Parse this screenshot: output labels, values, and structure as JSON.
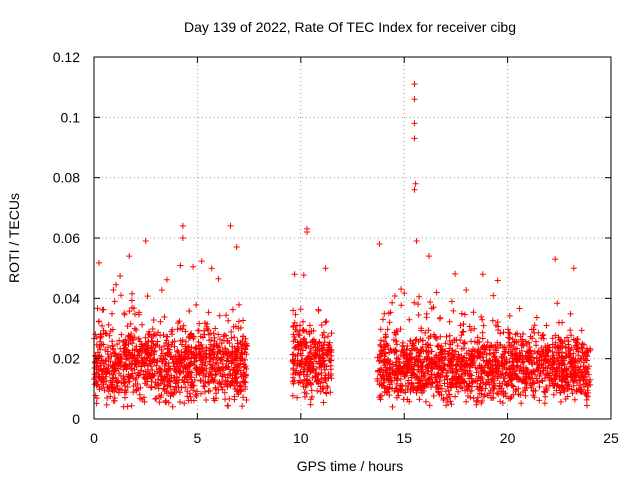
{
  "chart_data": {
    "type": "scatter",
    "title": "Day 139 of 2022, Rate Of TEC Index for receiver cibg",
    "xlabel": "GPS time / hours",
    "ylabel": "ROTI / TECUs",
    "xlim": [
      0,
      25
    ],
    "ylim": [
      0,
      0.12
    ],
    "xticks": [
      0,
      5,
      10,
      15,
      20,
      25
    ],
    "yticks": [
      0,
      0.02,
      0.04,
      0.06,
      0.08,
      0.1,
      0.12
    ],
    "grid": true,
    "marker": "+",
    "color": "#ff0000",
    "segments": [
      {
        "start": 0.0,
        "end": 7.4,
        "base": 0.018,
        "spread": 0.012
      },
      {
        "start": 9.6,
        "end": 11.5,
        "base": 0.019,
        "spread": 0.011
      },
      {
        "start": 13.7,
        "end": 24.0,
        "base": 0.017,
        "spread": 0.011
      }
    ],
    "outliers": [
      {
        "x": 15.5,
        "y": 0.111
      },
      {
        "x": 15.5,
        "y": 0.106
      },
      {
        "x": 15.5,
        "y": 0.098
      },
      {
        "x": 15.5,
        "y": 0.093
      },
      {
        "x": 15.55,
        "y": 0.078
      },
      {
        "x": 15.5,
        "y": 0.076
      },
      {
        "x": 4.3,
        "y": 0.064
      },
      {
        "x": 6.6,
        "y": 0.064
      },
      {
        "x": 10.3,
        "y": 0.063
      },
      {
        "x": 10.3,
        "y": 0.062
      },
      {
        "x": 15.6,
        "y": 0.059
      },
      {
        "x": 2.5,
        "y": 0.059
      },
      {
        "x": 4.3,
        "y": 0.06
      },
      {
        "x": 13.8,
        "y": 0.058
      },
      {
        "x": 6.9,
        "y": 0.057
      },
      {
        "x": 1.7,
        "y": 0.054
      },
      {
        "x": 16.2,
        "y": 0.054
      },
      {
        "x": 22.3,
        "y": 0.053
      },
      {
        "x": 23.2,
        "y": 0.05
      },
      {
        "x": 11.2,
        "y": 0.05
      },
      {
        "x": 18.8,
        "y": 0.048
      },
      {
        "x": 9.7,
        "y": 0.048
      },
      {
        "x": 1.0,
        "y": 0.039
      }
    ]
  }
}
